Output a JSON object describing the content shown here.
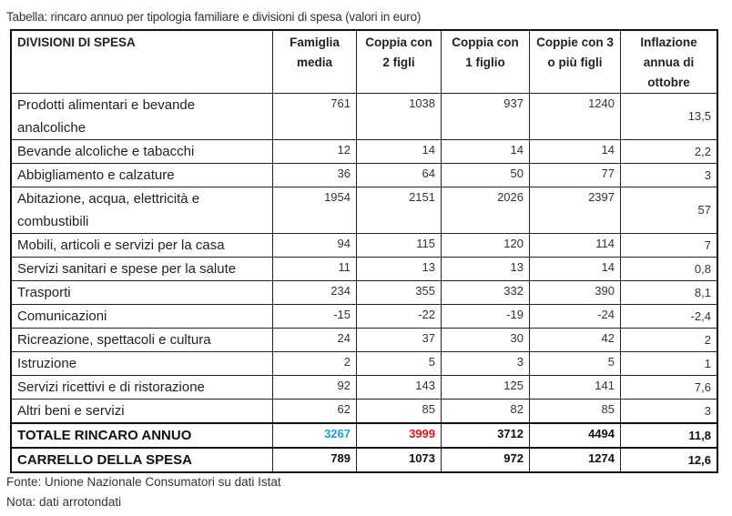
{
  "caption": "Tabella: rincaro annuo per tipologia familiare e divisioni di spesa (valori in euro)",
  "table": {
    "headers": [
      "DIVISIONI DI SPESA",
      "Famiglia media",
      "Coppia con 2 figli",
      "Coppia con 1 figlio",
      "Coppie con 3 o più figli",
      "Inflazione annua di ottobre"
    ],
    "rows": [
      {
        "label": "Prodotti alimentari e bevande analcoliche",
        "values": [
          "761",
          "1038",
          "937",
          "1240",
          "13,5"
        ]
      },
      {
        "label": "Bevande alcoliche e tabacchi",
        "values": [
          "12",
          "14",
          "14",
          "14",
          "2,2"
        ]
      },
      {
        "label": "Abbigliamento e calzature",
        "values": [
          "36",
          "64",
          "50",
          "77",
          "3"
        ]
      },
      {
        "label": "Abitazione, acqua, elettricità e combustibili",
        "values": [
          "1954",
          "2151",
          "2026",
          "2397",
          "57"
        ]
      },
      {
        "label": "Mobili, articoli e servizi per la casa",
        "values": [
          "94",
          "115",
          "120",
          "114",
          "7"
        ]
      },
      {
        "label": "Servizi sanitari e spese per la salute",
        "values": [
          "11",
          "13",
          "13",
          "14",
          "0,8"
        ]
      },
      {
        "label": "Trasporti",
        "values": [
          "234",
          "355",
          "332",
          "390",
          "8,1"
        ]
      },
      {
        "label": "Comunicazioni",
        "values": [
          "-15",
          "-22",
          "-19",
          "-24",
          "-2,4"
        ]
      },
      {
        "label": "Ricreazione, spettacoli e cultura",
        "values": [
          "24",
          "37",
          "30",
          "42",
          "2"
        ]
      },
      {
        "label": "Istruzione",
        "values": [
          "2",
          "5",
          "3",
          "5",
          "1"
        ]
      },
      {
        "label": "Servizi ricettivi e di ristorazione",
        "values": [
          "92",
          "143",
          "125",
          "141",
          "7,6"
        ]
      },
      {
        "label": "Altri beni e servizi",
        "values": [
          "62",
          "85",
          "82",
          "85",
          "3"
        ]
      }
    ],
    "totals": [
      {
        "label": "TOTALE RINCARO ANNUO",
        "values": [
          "3267",
          "3999",
          "3712",
          "4494",
          "11,8"
        ]
      },
      {
        "label": "CARRELLO DELLA SPESA",
        "values": [
          "789",
          "1073",
          "972",
          "1274",
          "12,6"
        ]
      }
    ],
    "highlight_colors": {
      "famiglia_media_total": "#1a9fd8",
      "coppia_2_figli_total": "#e0141e"
    }
  },
  "footer": {
    "source": "Fonte: Unione Nazionale Consumatori su dati Istat",
    "note": "Nota: dati arrotondati"
  }
}
